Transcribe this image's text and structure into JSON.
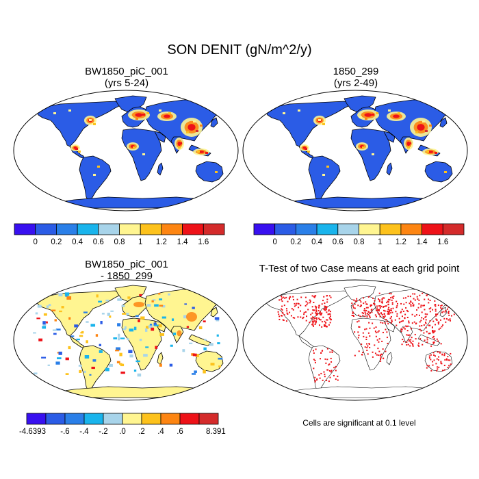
{
  "main_title": "SON DENIT (gN/m^2/y)",
  "colors": {
    "palette": [
      "#3810f0",
      "#2b5ce6",
      "#2a7fe8",
      "#19b4ec",
      "#a8d4ea",
      "#fff591",
      "#fdc21c",
      "#fd8512",
      "#ee1218",
      "#d42b2b"
    ],
    "map_ocean": "#ffffff",
    "map_outline": "#000000"
  },
  "panels": [
    {
      "id": "case",
      "title_line1": "BW1850_piC_001",
      "title_line2": "(yrs 5-24)",
      "base_color": "#2b5ce6",
      "style": "field"
    },
    {
      "id": "control",
      "title_line1": "1850_299",
      "title_line2": "(yrs 2-49)",
      "base_color": "#2b5ce6",
      "style": "field"
    },
    {
      "id": "diff",
      "title_line1": "BW1850_piC_001",
      "title_line2": "- 1850_299",
      "base_color": "#fff591",
      "style": "diff"
    },
    {
      "id": "ttest",
      "title_line1": "T-Test of two Case means at each grid point",
      "title_line2": "",
      "base_color": "#ffffff",
      "style": "sig"
    }
  ],
  "colorbars": [
    {
      "id": "cbar-case",
      "labels": [
        "0",
        "0.2",
        "0.4",
        "0.6",
        "0.8",
        "1",
        "1.2",
        "1.4",
        "1.6"
      ]
    },
    {
      "id": "cbar-control",
      "labels": [
        "0",
        "0.2",
        "0.4",
        "0.6",
        "0.8",
        "1",
        "1.2",
        "1.4",
        "1.6"
      ]
    },
    {
      "id": "cbar-diff",
      "labels": [
        "-.6",
        "-.4",
        "-.2",
        ".0",
        ".2",
        ".4",
        ".6"
      ],
      "min_label": "-4.6393",
      "max_label": "8.391"
    }
  ],
  "significance_note": "Cells are significant at 0.1 level",
  "chart_data": [
    {
      "type": "heatmap",
      "title": "BW1850_piC_001 (yrs 5-24)",
      "projection": "Robinson world map",
      "variable": "SON DENIT",
      "units": "gN/m^2/y",
      "levels": [
        0,
        0.2,
        0.4,
        0.6,
        0.8,
        1,
        1.2,
        1.4,
        1.6
      ],
      "hotspots": [
        "eastern Europe / western Russia",
        "east Asia",
        "south Asia",
        "central America",
        "southeast Asia islands"
      ]
    },
    {
      "type": "heatmap",
      "title": "1850_299 (yrs 2-49)",
      "projection": "Robinson world map",
      "variable": "SON DENIT",
      "units": "gN/m^2/y",
      "levels": [
        0,
        0.2,
        0.4,
        0.6,
        0.8,
        1,
        1.2,
        1.4,
        1.6
      ],
      "hotspots": [
        "eastern Europe / western Russia",
        "east Asia",
        "south Asia",
        "central America",
        "southeast Asia islands"
      ]
    },
    {
      "type": "heatmap",
      "title": "BW1850_piC_001 - 1850_299",
      "projection": "Robinson world map",
      "variable": "SON DENIT difference",
      "units": "gN/m^2/y",
      "levels": [
        -0.6,
        -0.4,
        -0.2,
        0.0,
        0.2,
        0.4,
        0.6
      ],
      "min": -4.6393,
      "max": 8.391
    },
    {
      "type": "heatmap",
      "title": "T-Test of two Case means at each grid point",
      "projection": "Robinson world map",
      "significance_level": 0.1
    }
  ]
}
